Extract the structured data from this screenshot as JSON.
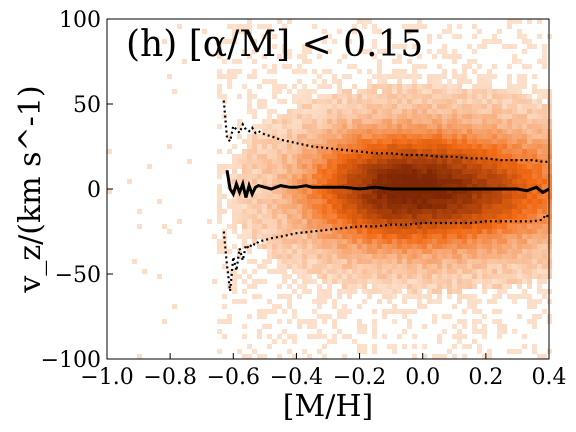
{
  "chart_data": {
    "type": "heatmap",
    "title": "(h) [α/M] < 0.15",
    "xlabel": "[M/H]",
    "ylabel": "v_z/(km s^-1)",
    "xlim": [
      -1.0,
      0.4
    ],
    "ylim": [
      -100,
      100
    ],
    "xticks": [
      "−1.0",
      "−0.8",
      "−0.6",
      "−0.4",
      "−0.2",
      "0.0",
      "0.2",
      "0.4"
    ],
    "yticks": [
      "−100",
      "−50",
      "0",
      "50",
      "100"
    ],
    "density": {
      "colormap": "Oranges",
      "color_low": "#fdeadb",
      "color_high": "#7f2704",
      "peak_x": -0.05,
      "peak_y": 0,
      "sigma_x": 0.2,
      "sigma_y": 22,
      "occupied_x_range": [
        -0.65,
        0.4
      ]
    },
    "series": [
      {
        "style": "solid",
        "x": [
          -0.62,
          -0.61,
          -0.6,
          -0.59,
          -0.58,
          -0.57,
          -0.56,
          -0.55,
          -0.54,
          -0.53,
          -0.52,
          -0.5,
          -0.48,
          -0.45,
          -0.42,
          -0.4,
          -0.37,
          -0.35,
          -0.32,
          -0.3,
          -0.25,
          -0.2,
          -0.15,
          -0.1,
          -0.05,
          0.0,
          0.05,
          0.1,
          0.15,
          0.2,
          0.25,
          0.3,
          0.33,
          0.36,
          0.38,
          0.4
        ],
        "y": [
          11,
          0,
          -3,
          3,
          -2,
          3,
          -5,
          2,
          -3,
          1,
          2,
          1,
          0,
          2,
          1,
          1,
          2,
          1,
          1,
          1,
          1,
          0,
          1,
          0,
          0,
          0,
          0,
          0,
          0,
          0,
          0,
          0,
          -1,
          1,
          -2,
          0
        ]
      },
      {
        "style": "dotted",
        "x": [
          -0.63,
          -0.62,
          -0.61,
          -0.6,
          -0.59,
          -0.58,
          -0.57,
          -0.56,
          -0.55,
          -0.54,
          -0.53,
          -0.52,
          -0.5,
          -0.48,
          -0.45,
          -0.4,
          -0.35,
          -0.3,
          -0.25,
          -0.2,
          -0.15,
          -0.1,
          -0.05,
          0.0,
          0.05,
          0.1,
          0.15,
          0.2,
          0.25,
          0.3,
          0.35,
          0.38,
          0.4
        ],
        "y": [
          52,
          30,
          28,
          37,
          35,
          33,
          38,
          35,
          34,
          36,
          33,
          34,
          32,
          31,
          29,
          27,
          25,
          24,
          23,
          22,
          21,
          21,
          20,
          20,
          19,
          19,
          18,
          18,
          17,
          17,
          17,
          16,
          16
        ]
      },
      {
        "style": "dotted",
        "x": [
          -0.63,
          -0.62,
          -0.61,
          -0.6,
          -0.59,
          -0.58,
          -0.57,
          -0.56,
          -0.55,
          -0.54,
          -0.53,
          -0.52,
          -0.5,
          -0.48,
          -0.45,
          -0.4,
          -0.35,
          -0.3,
          -0.25,
          -0.2,
          -0.15,
          -0.1,
          -0.05,
          0.0,
          0.05,
          0.1,
          0.15,
          0.2,
          0.25,
          0.3,
          0.35,
          0.38,
          0.39,
          0.4
        ],
        "y": [
          -25,
          -45,
          -60,
          -40,
          -48,
          -35,
          -42,
          -33,
          -35,
          -32,
          -33,
          -31,
          -30,
          -29,
          -28,
          -26,
          -25,
          -24,
          -23,
          -22,
          -22,
          -21,
          -21,
          -20,
          -20,
          -20,
          -20,
          -19,
          -19,
          -19,
          -19,
          -18,
          -15,
          -17
        ]
      }
    ]
  }
}
